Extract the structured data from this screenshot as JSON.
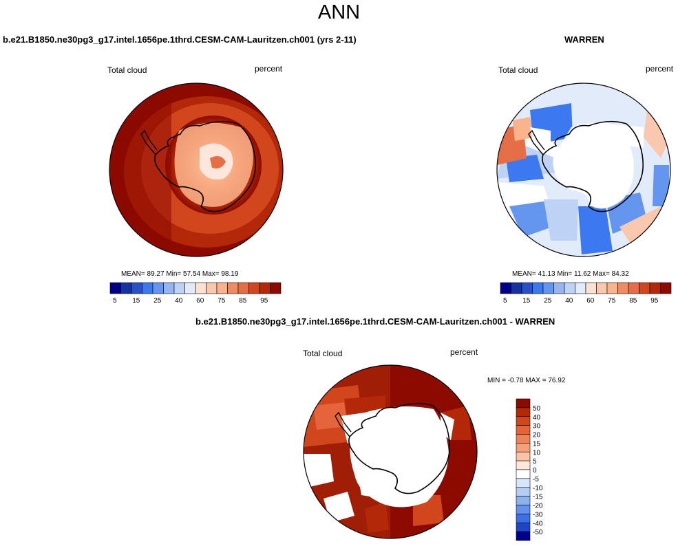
{
  "page": {
    "title": "ANN"
  },
  "panels": {
    "left": {
      "case_title": "b.e21.B1850.ne30pg3_g17.intel.1656pe.1thrd.CESM-CAM-Lauritzen.ch001 (yrs 2-11)",
      "variable": "Total cloud",
      "units": "percent",
      "stats_text": "MEAN=  89.27   Min=  57.54   Max=  98.19"
    },
    "right": {
      "case_title": "WARREN",
      "variable": "Total cloud",
      "units": "percent",
      "stats_text": "MEAN=  41.13   Min=  11.62   Max=  84.32"
    },
    "diff": {
      "case_title": "b.e21.B1850.ne30pg3_g17.intel.1656pe.1thrd.CESM-CAM-Lauritzen.ch001 - WARREN",
      "variable": "Total cloud",
      "units": "percent",
      "stats_text": "MIN =  -0.78 MAX =  76.92"
    }
  },
  "chart_data": [
    {
      "type": "heatmap",
      "projection": "south-polar-stereographic",
      "title": "Total cloud",
      "units": "percent",
      "stats": {
        "mean": 89.27,
        "min": 57.54,
        "max": 98.19
      },
      "colorbar": {
        "ticks": [
          5,
          15,
          25,
          40,
          60,
          75,
          85,
          95
        ],
        "colors": [
          "#00008c",
          "#1432a0",
          "#2850c8",
          "#3c78f0",
          "#6496f0",
          "#96b4f0",
          "#bed2f5",
          "#e1ebfa",
          "#fae1d2",
          "#fac8af",
          "#fab48c",
          "#f08c64",
          "#e66e46",
          "#d2461e",
          "#b4280a",
          "#8c0a00"
        ]
      }
    },
    {
      "type": "heatmap",
      "projection": "south-polar-stereographic",
      "title": "Total cloud",
      "units": "percent",
      "stats": {
        "mean": 41.13,
        "min": 11.62,
        "max": 84.32
      },
      "colorbar": {
        "ticks": [
          5,
          15,
          25,
          40,
          60,
          75,
          85,
          95
        ],
        "colors": [
          "#00008c",
          "#1432a0",
          "#2850c8",
          "#3c78f0",
          "#6496f0",
          "#96b4f0",
          "#bed2f5",
          "#e1ebfa",
          "#fae1d2",
          "#fac8af",
          "#fab48c",
          "#f08c64",
          "#e66e46",
          "#d2461e",
          "#b4280a",
          "#8c0a00"
        ]
      }
    },
    {
      "type": "heatmap",
      "projection": "south-polar-stereographic",
      "title": "Total cloud",
      "units": "percent",
      "stats": {
        "min": -0.78,
        "max": 76.92
      },
      "colorbar": {
        "orientation": "vertical",
        "ticks": [
          50,
          40,
          30,
          20,
          15,
          10,
          5,
          0,
          -5,
          -10,
          -15,
          -20,
          -30,
          -40,
          -50
        ],
        "colors": [
          "#8c0a00",
          "#b4280a",
          "#d2461e",
          "#e6643c",
          "#f0825a",
          "#f5a07d",
          "#fac3a5",
          "#fde6dc",
          "#ffffff",
          "#d7e6fa",
          "#b4cdf5",
          "#8cb0f0",
          "#6490f0",
          "#3c6ee6",
          "#1e46c8",
          "#00008c"
        ]
      }
    }
  ]
}
